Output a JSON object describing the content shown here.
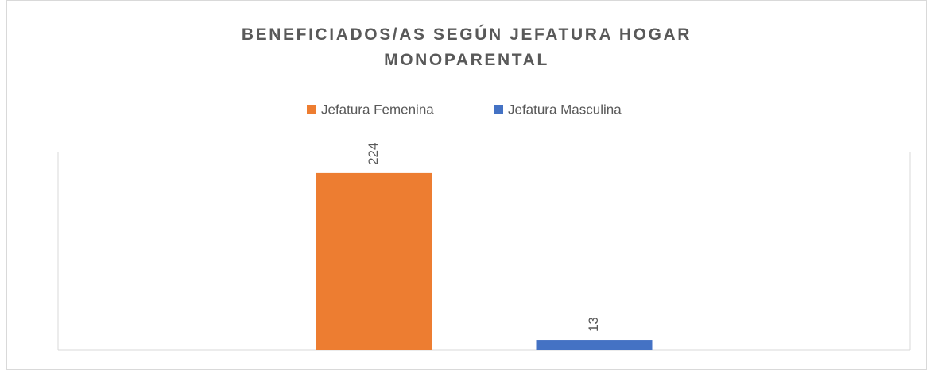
{
  "chart_data": {
    "type": "bar",
    "title": "BENEFICIADOS/AS SEGÚN JEFATURA HOGAR MONOPARENTAL",
    "categories": [
      null
    ],
    "series": [
      {
        "name": "Jefatura Femenina",
        "color": "#ed7d31",
        "values": [
          224
        ]
      },
      {
        "name": "Jefatura Masculina",
        "color": "#4472c4",
        "values": [
          13
        ]
      }
    ],
    "ylim": [
      0,
      250
    ],
    "legend": "top"
  }
}
